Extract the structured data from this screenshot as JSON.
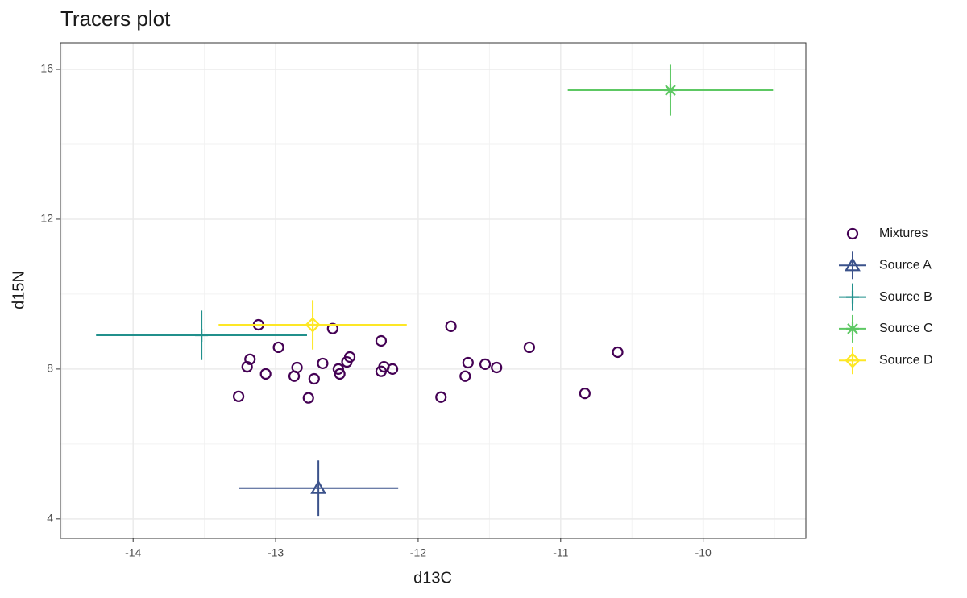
{
  "chart_data": {
    "type": "scatter",
    "title": "Tracers plot",
    "x_label": "d13C",
    "y_label": "d15N",
    "xlim": [
      -14.51,
      -9.28
    ],
    "ylim": [
      3.48,
      16.71
    ],
    "xticks": [
      -14,
      -13,
      -12,
      -11,
      -10
    ],
    "yticks": [
      4,
      8,
      12,
      16
    ],
    "grid": true,
    "legend": "right",
    "series": [
      {
        "name": "Mixtures",
        "color": "#440154",
        "shape": "open-circle",
        "x": [
          -13.12,
          -13.26,
          -13.18,
          -13.2,
          -13.07,
          -12.98,
          -12.87,
          -12.85,
          -12.77,
          -12.73,
          -12.67,
          -12.6,
          -12.56,
          -12.55,
          -12.5,
          -12.48,
          -12.26,
          -12.26,
          -12.24,
          -12.18,
          -11.84,
          -11.77,
          -11.67,
          -11.65,
          -11.53,
          -11.45,
          -11.22,
          -10.83,
          -10.6
        ],
        "values": [
          9.18,
          7.27,
          8.26,
          8.06,
          7.87,
          8.58,
          7.81,
          8.04,
          7.23,
          7.74,
          8.15,
          9.08,
          8.0,
          7.87,
          8.19,
          8.32,
          8.75,
          7.94,
          8.06,
          8.0,
          7.25,
          9.14,
          7.81,
          8.17,
          8.13,
          8.04,
          8.58,
          7.35,
          8.45
        ]
      },
      {
        "name": "Source A",
        "color": "#3b528b",
        "shape": "triangle",
        "x": [
          -12.7
        ],
        "values": [
          4.82
        ],
        "x_err": [
          0.56
        ],
        "y_err": [
          0.74
        ]
      },
      {
        "name": "Source B",
        "color": "#21908c",
        "shape": "plus",
        "x": [
          -13.52
        ],
        "values": [
          8.9
        ],
        "x_err": [
          0.74
        ],
        "y_err": [
          0.66
        ]
      },
      {
        "name": "Source C",
        "color": "#5dc863",
        "shape": "asterisk",
        "x": [
          -10.23
        ],
        "values": [
          15.44
        ],
        "x_err": [
          0.72
        ],
        "y_err": [
          0.68
        ]
      },
      {
        "name": "Source D",
        "color": "#fde725",
        "shape": "diamond-plus",
        "x": [
          -12.74
        ],
        "values": [
          9.18
        ],
        "x_err": [
          0.66
        ],
        "y_err": [
          0.66
        ]
      }
    ]
  }
}
